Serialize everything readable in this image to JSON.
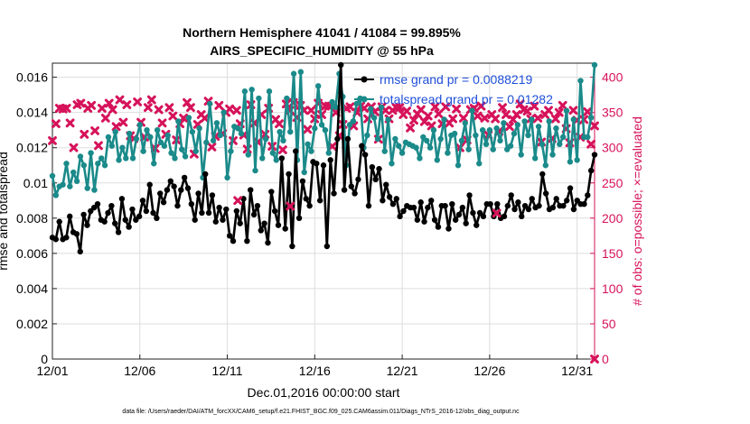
{
  "chart_data": {
    "type": "line",
    "title": "Northern Hemisphere 41041 / 41084 = 99.895%",
    "subtitle": "AIRS_SPECIFIC_HUMIDITY @ 55 hPa",
    "xlabel": "Dec.01,2016 00:00:00 start",
    "ylabel": "rmse and totalspread",
    "ylabel_right": "# of obs: o=possible; ×=evaluated",
    "xlim": [
      1,
      32
    ],
    "ylim": [
      0,
      0.0168
    ],
    "ylim_right": [
      0,
      420
    ],
    "grid": true,
    "x_ticks": [
      1,
      6,
      11,
      16,
      21,
      26,
      31
    ],
    "x_tick_labels": [
      "12/01",
      "12/06",
      "12/11",
      "12/16",
      "12/21",
      "12/26",
      "12/31"
    ],
    "y_ticks": [
      0,
      0.002,
      0.004,
      0.006,
      0.008,
      0.01,
      0.012,
      0.014,
      0.016
    ],
    "y_tick_labels": [
      "0",
      "0.002",
      "0.004",
      "0.006",
      "0.008",
      "0.01",
      "0.012",
      "0.014",
      "0.016"
    ],
    "y_ticks_right": [
      0,
      50,
      100,
      150,
      200,
      250,
      300,
      350,
      400
    ],
    "y_tick_labels_right": [
      "0",
      "50",
      "100",
      "150",
      "200",
      "250",
      "300",
      "350",
      "400"
    ],
    "legend_position": "top-right",
    "series": [
      {
        "name": "rmse grand pr = 0.0088219",
        "color": "#000000",
        "axis": "left",
        "values": [
          0.0069,
          0.0068,
          0.0078,
          0.0068,
          0.0069,
          0.0081,
          0.0072,
          0.0071,
          0.0061,
          0.0082,
          0.0076,
          0.0084,
          0.0086,
          0.0088,
          0.0079,
          0.0078,
          0.0083,
          0.0087,
          0.0077,
          0.0072,
          0.0091,
          0.0079,
          0.0075,
          0.0085,
          0.0079,
          0.0081,
          0.009,
          0.0084,
          0.0099,
          0.0083,
          0.008,
          0.0094,
          0.0089,
          0.0096,
          0.0101,
          0.0098,
          0.0087,
          0.0096,
          0.0103,
          0.0097,
          0.0088,
          0.0079,
          0.0094,
          0.0083,
          0.0105,
          0.0083,
          0.0093,
          0.0078,
          0.0086,
          0.0079,
          0.0085,
          0.007,
          0.0067,
          0.0084,
          0.0077,
          0.0091,
          0.0067,
          0.0096,
          0.0082,
          0.0087,
          0.0073,
          0.0077,
          0.0066,
          0.0095,
          0.0084,
          0.0076,
          0.0114,
          0.0074,
          0.0105,
          0.0064,
          0.0118,
          0.008,
          0.0101,
          0.0091,
          0.0087,
          0.0112,
          0.0111,
          0.009,
          0.011,
          0.0064,
          0.0113,
          0.0094,
          0.0125,
          0.0167,
          0.0096,
          0.0125,
          0.0098,
          0.0094,
          0.0102,
          0.0121,
          0.0116,
          0.0087,
          0.0109,
          0.0102,
          0.0108,
          0.009,
          0.0099,
          0.0092,
          0.0088,
          0.0091,
          0.0081,
          0.0084,
          0.0087,
          0.0086,
          0.0086,
          0.0079,
          0.0089,
          0.0078,
          0.0086,
          0.009,
          0.0079,
          0.0075,
          0.0087,
          0.0087,
          0.0074,
          0.0088,
          0.0079,
          0.0082,
          0.0086,
          0.0077,
          0.0093,
          0.0083,
          0.0076,
          0.0083,
          0.0081,
          0.0088,
          0.0088,
          0.0081,
          0.0088,
          0.008,
          0.0081,
          0.0087,
          0.0093,
          0.0085,
          0.0089,
          0.0081,
          0.0087,
          0.0085,
          0.0091,
          0.0086,
          0.0087,
          0.0105,
          0.0094,
          0.0085,
          0.0086,
          0.0091,
          0.0087,
          0.0087,
          0.009,
          0.0097,
          0.0085,
          0.009,
          0.0088,
          0.0088,
          0.0093,
          0.0107,
          0.0116
        ]
      },
      {
        "name": "totalspread grand pr = 0.01282",
        "color": "#1b8a8a",
        "axis": "left",
        "values": [
          0.0104,
          0.0093,
          0.0098,
          0.0099,
          0.0111,
          0.0098,
          0.0106,
          0.0101,
          0.0115,
          0.011,
          0.0097,
          0.0117,
          0.0096,
          0.0111,
          0.0114,
          0.011,
          0.0126,
          0.0121,
          0.0129,
          0.0113,
          0.012,
          0.0114,
          0.0128,
          0.0114,
          0.0125,
          0.0133,
          0.0118,
          0.013,
          0.0126,
          0.0111,
          0.013,
          0.0123,
          0.0121,
          0.0127,
          0.0117,
          0.0114,
          0.0135,
          0.0119,
          0.0115,
          0.0137,
          0.0129,
          0.0118,
          0.0131,
          0.0103,
          0.0123,
          0.0145,
          0.0124,
          0.0134,
          0.0127,
          0.014,
          0.0103,
          0.0118,
          0.0132,
          0.0131,
          0.0128,
          0.0152,
          0.0116,
          0.0153,
          0.0107,
          0.0148,
          0.0114,
          0.0125,
          0.0152,
          0.0117,
          0.0113,
          0.0129,
          0.0124,
          0.0148,
          0.0129,
          0.0162,
          0.0113,
          0.0163,
          0.0106,
          0.0122,
          0.0118,
          0.0131,
          0.0155,
          0.0133,
          0.013,
          0.0117,
          0.0146,
          0.0143,
          0.0162,
          0.0149,
          0.011,
          0.0133,
          0.0135,
          0.0145,
          0.0148,
          0.012,
          0.0127,
          0.0142,
          0.0137,
          0.0125,
          0.0143,
          0.0118,
          0.0136,
          0.0111,
          0.0125,
          0.0121,
          0.0117,
          0.0123,
          0.0122,
          0.0121,
          0.012,
          0.0114,
          0.0126,
          0.0124,
          0.012,
          0.013,
          0.0113,
          0.0125,
          0.0136,
          0.0117,
          0.0127,
          0.0128,
          0.011,
          0.0124,
          0.0134,
          0.0119,
          0.0141,
          0.0127,
          0.0111,
          0.013,
          0.0122,
          0.013,
          0.0119,
          0.0131,
          0.0124,
          0.0134,
          0.0119,
          0.0121,
          0.0128,
          0.0133,
          0.0116,
          0.0135,
          0.0127,
          0.0136,
          0.0114,
          0.0132,
          0.0122,
          0.011,
          0.0135,
          0.0116,
          0.0131,
          0.0122,
          0.0126,
          0.0141,
          0.0112,
          0.0136,
          0.0113,
          0.0158,
          0.0126,
          0.0126,
          0.0137,
          0.0167
        ]
      },
      {
        "name": "# of obs evaluated",
        "color": "#d6125a",
        "axis": "right",
        "marker": "x",
        "values": [
          310,
          334,
          356,
          355,
          356,
          335,
          300,
          361,
          363,
          319,
          356,
          360,
          324,
          303,
          356,
          342,
          363,
          354,
          330,
          368,
          336,
          361,
          317,
          313,
          365,
          336,
          315,
          357,
          368,
          299,
          354,
          335,
          319,
          357,
          345,
          311,
          334,
          342,
          364,
          357,
          291,
          333,
          347,
          342,
          366,
          301,
          316,
          360,
          320,
          350,
          355,
          310,
          353,
          334,
          318,
          298,
          361,
          335,
          308,
          347,
          319,
          356,
          302,
          340,
          334,
          297,
          362,
          353,
          364,
          343,
          360,
          353,
          326,
          353,
          341,
          363,
          347,
          359,
          359,
          302,
          350,
          317,
          333,
          356,
          358,
          331,
          350,
          359,
          356,
          341,
          358,
          351,
          312,
          358,
          353,
          341,
          353,
          357,
          357,
          347,
          352,
          328,
          339,
          348,
          354,
          337,
          345,
          331,
          358,
          348,
          334,
          358,
          335,
          341,
          355,
          300,
          342,
          311,
          354,
          356,
          345,
          359,
          342,
          318,
          347,
          341,
          323,
          357,
          347,
          330,
          340,
          347,
          362,
          354,
          352,
          341,
          359,
          342,
          308,
          347,
          353,
          313,
          341,
          350,
          360,
          327,
          307,
          353,
          339,
          315,
          340,
          351,
          305,
          331
        ]
      }
    ],
    "extra_points_right": {
      "description_note": "isolated markers in the lower area",
      "markers": [
        {
          "x": 11.6,
          "y": 225
        },
        {
          "x": 14.6,
          "y": 217
        },
        {
          "x": 26.4,
          "y": 207
        },
        {
          "x": 32,
          "y": 0
        }
      ]
    }
  },
  "footer": "data file: /Users/raeder/DAI/ATM_forcXX/CAM6_setup/f.e21.FHIST_BGC.f09_025.CAM6assim.011/Diags_NTrS_2016-12/obs_diag_output.nc"
}
